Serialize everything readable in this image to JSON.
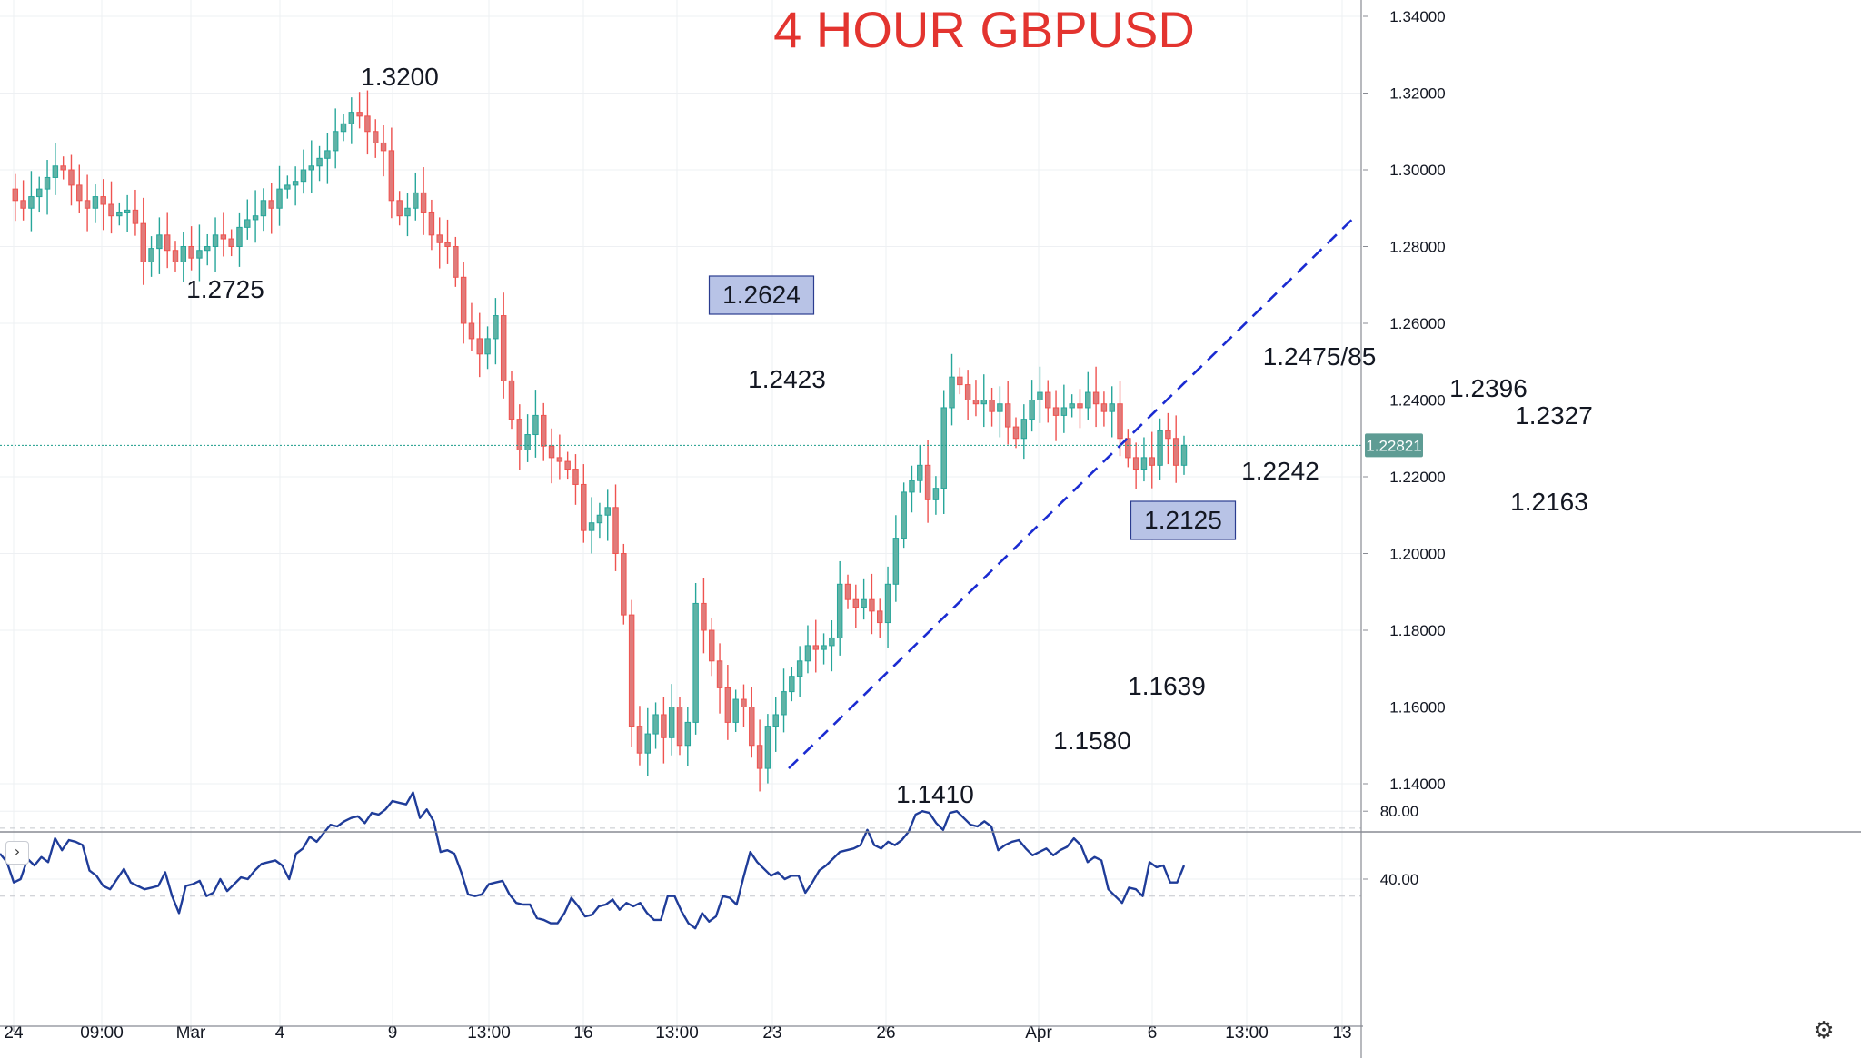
{
  "chart_data": [
    {
      "type": "candlestick",
      "title": "4 HOUR GBPUSD",
      "ylim": [
        1.13,
        1.343
      ],
      "y_ticks": [
        "1.34000",
        "1.32000",
        "1.30000",
        "1.28000",
        "1.26000",
        "1.24000",
        "1.22000",
        "1.20000",
        "1.18000",
        "1.16000",
        "1.14000"
      ],
      "x_ticks": [
        "24",
        "09:00",
        "Mar",
        "4",
        "9",
        "13:00",
        "16",
        "13:00",
        "23",
        "26",
        "Apr",
        "6",
        "13:00",
        "13"
      ],
      "last_price": "1.22821",
      "last_price_value": 1.22821,
      "path": [
        1.295,
        1.292,
        1.29,
        1.293,
        1.295,
        1.298,
        1.301,
        1.3,
        1.296,
        1.292,
        1.29,
        1.293,
        1.291,
        1.288,
        1.289,
        1.2895,
        1.286,
        1.276,
        1.2795,
        1.283,
        1.279,
        1.276,
        1.28,
        1.277,
        1.279,
        1.28,
        1.283,
        1.282,
        1.28,
        1.285,
        1.287,
        1.288,
        1.292,
        1.29,
        1.295,
        1.296,
        1.297,
        1.3,
        1.301,
        1.303,
        1.305,
        1.31,
        1.312,
        1.315,
        1.314,
        1.31,
        1.307,
        1.305,
        1.292,
        1.288,
        1.29,
        1.294,
        1.289,
        1.283,
        1.281,
        1.28,
        1.272,
        1.26,
        1.256,
        1.252,
        1.256,
        1.262,
        1.245,
        1.235,
        1.227,
        1.231,
        1.236,
        1.228,
        1.225,
        1.224,
        1.222,
        1.218,
        1.206,
        1.208,
        1.21,
        1.212,
        1.2,
        1.184,
        1.155,
        1.148,
        1.153,
        1.158,
        1.152,
        1.16,
        1.15,
        1.156,
        1.187,
        1.18,
        1.172,
        1.165,
        1.156,
        1.162,
        1.16,
        1.15,
        1.144,
        1.155,
        1.158,
        1.164,
        1.168,
        1.172,
        1.176,
        1.175,
        1.176,
        1.178,
        1.192,
        1.188,
        1.186,
        1.188,
        1.185,
        1.182,
        1.192,
        1.204,
        1.216,
        1.219,
        1.223,
        1.214,
        1.217,
        1.238,
        1.246,
        1.244,
        1.24,
        1.239,
        1.24,
        1.237,
        1.239,
        1.233,
        1.23,
        1.235,
        1.24,
        1.242,
        1.238,
        1.236,
        1.238,
        1.239,
        1.238,
        1.242,
        1.239,
        1.237,
        1.239,
        1.23,
        1.225,
        1.222,
        1.225,
        1.223,
        1.232,
        1.23,
        1.223,
        1.2282
      ],
      "price_labels": [
        {
          "text": "1.3200",
          "boxed": false
        },
        {
          "text": "1.2725",
          "boxed": false
        },
        {
          "text": "1.2624",
          "boxed": true
        },
        {
          "text": "1.2423",
          "boxed": false
        },
        {
          "text": "1.1410",
          "boxed": false
        },
        {
          "text": "1.1580",
          "boxed": false
        },
        {
          "text": "1.1639",
          "boxed": false
        },
        {
          "text": "1.2125",
          "boxed": true
        },
        {
          "text": "1.2475/85",
          "boxed": false
        },
        {
          "text": "1.2242",
          "boxed": false
        },
        {
          "text": "1.2396",
          "boxed": false
        },
        {
          "text": "1.2327",
          "boxed": false
        },
        {
          "text": "1.2163",
          "boxed": false
        }
      ],
      "trendline": {
        "style": "dashed",
        "color": "#1a2bd1",
        "from": 1.144,
        "to": 1.288
      },
      "colors": {
        "up": "#26a69a",
        "down": "#ef5350",
        "up_fill": "#5fb3a6",
        "down_fill": "#e07b7a",
        "last_price_bg": "#5e9c94",
        "grid": "#eef0f3",
        "axis": "#888b93"
      }
    },
    {
      "type": "line",
      "name": "oscillator",
      "ylim": [
        0,
        100
      ],
      "y_ticks": [
        "80.00",
        "40.00"
      ],
      "levels": [
        70,
        30
      ],
      "color": "#1f3c99",
      "values": [
        55,
        50,
        38,
        40,
        52,
        48,
        53,
        50,
        64,
        57,
        63,
        62,
        60,
        45,
        42,
        36,
        34,
        40,
        46,
        38,
        36,
        34,
        35,
        36,
        44,
        30,
        20,
        36,
        37,
        39,
        30,
        32,
        40,
        33,
        37,
        41,
        40,
        45,
        49,
        50,
        51,
        48,
        40,
        55,
        58,
        65,
        62,
        67,
        72,
        71,
        74,
        76,
        77,
        73,
        79,
        78,
        81,
        86,
        85,
        84,
        91,
        76,
        81,
        74,
        56,
        57,
        55,
        44,
        31,
        30,
        31,
        37,
        38,
        39,
        31,
        26,
        25,
        25,
        17,
        16,
        14,
        14,
        20,
        29,
        24,
        18,
        19,
        24,
        25,
        28,
        22,
        26,
        24,
        26,
        20,
        16,
        16,
        30,
        30,
        21,
        14,
        11,
        20,
        15,
        18,
        30,
        29,
        25,
        41,
        56,
        50,
        46,
        42,
        44,
        40,
        42,
        42,
        32,
        38,
        45,
        48,
        52,
        56,
        57,
        58,
        60,
        69,
        60,
        58,
        62,
        60,
        63,
        68,
        78,
        80,
        79,
        73,
        69,
        79,
        80,
        76,
        72,
        71,
        74,
        71,
        57,
        60,
        62,
        63,
        58,
        54,
        56,
        58,
        54,
        57,
        59,
        64,
        60,
        50,
        53,
        51,
        34,
        30,
        26,
        35,
        34,
        30,
        50,
        47,
        48,
        38,
        38,
        48
      ]
    }
  ]
}
